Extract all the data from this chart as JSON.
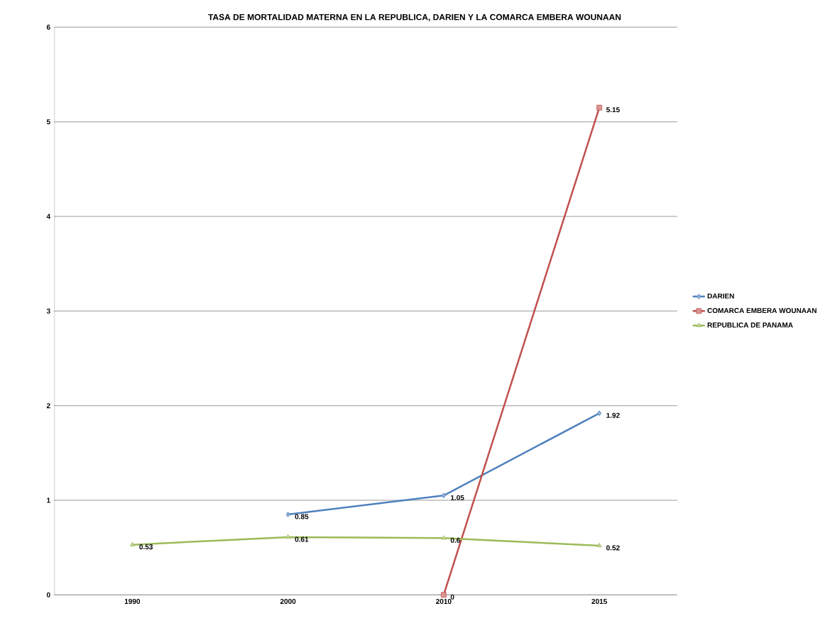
{
  "chart_data": {
    "type": "line",
    "title": "TASA DE MORTALIDAD MATERNA EN LA REPUBLICA, DARIEN Y LA COMARCA EMBERA WOUNAAN",
    "categories": [
      "1990",
      "2000",
      "2010",
      "2015"
    ],
    "series": [
      {
        "name": "DARIEN",
        "color": "#4f81bd",
        "marker": "diamond",
        "values": [
          null,
          0.85,
          1.05,
          1.92
        ]
      },
      {
        "name": "COMARCA EMBERA WOUNAAN",
        "color": "#c0504d",
        "marker": "square",
        "values": [
          null,
          null,
          0,
          5.15
        ]
      },
      {
        "name": "REPUBLICA DE PANAMA",
        "color": "#9bbb59",
        "marker": "triangle",
        "values": [
          0.53,
          0.61,
          0.6,
          0.52
        ]
      }
    ],
    "ylim": [
      0,
      6
    ],
    "yticks": [
      0,
      1,
      2,
      3,
      4,
      5,
      6
    ],
    "grid": "y",
    "legend": "right",
    "data_labels": true
  }
}
